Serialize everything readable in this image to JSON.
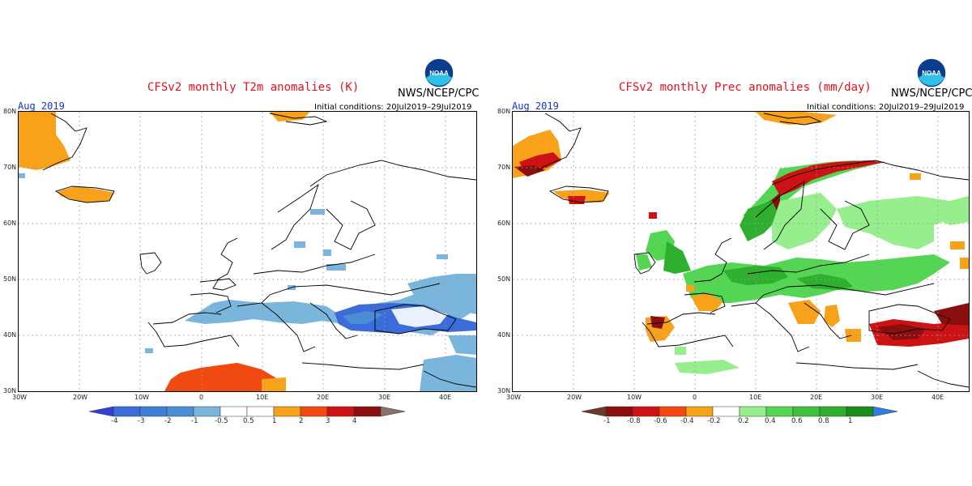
{
  "colors": {
    "title": "#e8101a",
    "month": "#1530d8",
    "grid": "#9a9a9a",
    "t2m_scale": [
      "#3340d8",
      "#3a6dd8",
      "#4a8fd6",
      "#7ab5dc",
      "#ffffff",
      "#ffffff",
      "#f8a11a",
      "#f14a10",
      "#cc1212",
      "#8a0e0e",
      "#8a7068"
    ],
    "prec_scale": [
      "#6b3a2a",
      "#8a0e0e",
      "#cc1212",
      "#f14a10",
      "#f8a11a",
      "#ffffff",
      "#ffffff",
      "#97ee8c",
      "#54d654",
      "#2eb02e",
      "#1a8c1a",
      "#2f7fe0"
    ]
  },
  "left_panel": {
    "title": "CFSv2 monthly T2m anomalies (K)",
    "agency": "NWS/NCEP/CPC",
    "logo_icon": "noaa-logo",
    "logo_text": "NOAA",
    "month": "Aug 2019",
    "initial_conditions": "Initial conditions: 20Jul2019–29Jul2019",
    "colorbar_labels": [
      "-4",
      "-3",
      "-2",
      "-1",
      "-0.5",
      "0.5",
      "1",
      "2",
      "3",
      "4"
    ]
  },
  "right_panel": {
    "title": "CFSv2 monthly Prec anomalies (mm/day)",
    "agency": "NWS/NCEP/CPC",
    "logo_icon": "noaa-logo",
    "logo_text": "NOAA",
    "month": "Aug 2019",
    "initial_conditions": "Initial conditions: 20Jul2019–29Jul2019",
    "colorbar_labels": [
      "-1",
      "-0.8",
      "-0.6",
      "-0.4",
      "-0.2",
      "0.2",
      "0.4",
      "0.6",
      "0.8",
      "1"
    ]
  },
  "axes": {
    "lat_labels": [
      "80N",
      "70N",
      "60N",
      "50N",
      "40N",
      "30N"
    ],
    "lon_labels": [
      "30W",
      "20W",
      "10W",
      "0",
      "10E",
      "20E",
      "30E",
      "40E"
    ]
  }
}
